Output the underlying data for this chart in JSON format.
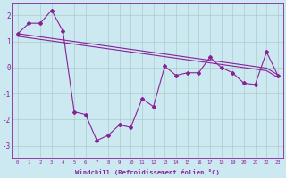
{
  "xlabel": "Windchill (Refroidissement éolien,°C)",
  "background_color": "#cce8f0",
  "grid_color": "#aacccc",
  "line_color": "#882299",
  "x_hours": [
    0,
    1,
    2,
    3,
    4,
    5,
    6,
    7,
    8,
    9,
    10,
    11,
    12,
    13,
    14,
    15,
    16,
    17,
    18,
    19,
    20,
    21,
    22,
    23
  ],
  "y_windchill": [
    1.3,
    1.7,
    1.7,
    2.2,
    1.4,
    -1.7,
    -1.8,
    -2.8,
    -2.6,
    -2.2,
    -2.3,
    -1.2,
    -1.5,
    0.05,
    -0.3,
    -0.2,
    -0.2,
    0.4,
    0.0,
    -0.2,
    -0.6,
    -0.65,
    0.6,
    -0.3
  ],
  "y_trend1": [
    1.3,
    1.24,
    1.18,
    1.12,
    1.06,
    1.0,
    0.94,
    0.88,
    0.82,
    0.76,
    0.7,
    0.64,
    0.58,
    0.52,
    0.46,
    0.4,
    0.34,
    0.28,
    0.22,
    0.16,
    0.1,
    0.04,
    -0.02,
    -0.28
  ],
  "y_trend2": [
    1.2,
    1.14,
    1.08,
    1.02,
    0.96,
    0.9,
    0.84,
    0.78,
    0.72,
    0.66,
    0.6,
    0.54,
    0.48,
    0.42,
    0.36,
    0.3,
    0.24,
    0.18,
    0.12,
    0.06,
    0.0,
    -0.06,
    -0.12,
    -0.38
  ],
  "ylim": [
    -3.5,
    2.5
  ],
  "yticks": [
    -3,
    -2,
    -1,
    0,
    1,
    2
  ],
  "xlim": [
    -0.5,
    23.5
  ],
  "figwidth": 3.2,
  "figheight": 2.0,
  "dpi": 100
}
